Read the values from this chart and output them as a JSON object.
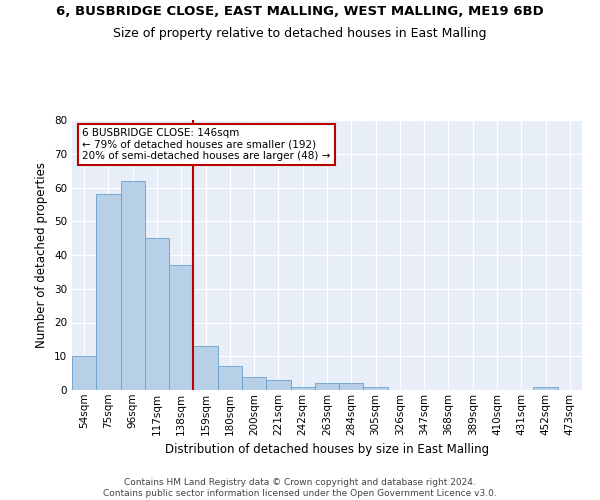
{
  "title_line1": "6, BUSBRIDGE CLOSE, EAST MALLING, WEST MALLING, ME19 6BD",
  "title_line2": "Size of property relative to detached houses in East Malling",
  "xlabel": "Distribution of detached houses by size in East Malling",
  "ylabel": "Number of detached properties",
  "categories": [
    "54sqm",
    "75sqm",
    "96sqm",
    "117sqm",
    "138sqm",
    "159sqm",
    "180sqm",
    "200sqm",
    "221sqm",
    "242sqm",
    "263sqm",
    "284sqm",
    "305sqm",
    "326sqm",
    "347sqm",
    "368sqm",
    "389sqm",
    "410sqm",
    "431sqm",
    "452sqm",
    "473sqm"
  ],
  "values": [
    10,
    58,
    62,
    45,
    37,
    13,
    7,
    4,
    3,
    1,
    2,
    2,
    1,
    0,
    0,
    0,
    0,
    0,
    0,
    1,
    0
  ],
  "bar_color": "#b8cfe8",
  "bar_edge_color": "#6aa0cc",
  "reference_line_index": 4,
  "reference_line_color": "#bb0000",
  "annotation_line1": "6 BUSBRIDGE CLOSE: 146sqm",
  "annotation_line2": "← 79% of detached houses are smaller (192)",
  "annotation_line3": "20% of semi-detached houses are larger (48) →",
  "annotation_box_edge_color": "#bb0000",
  "ylim": [
    0,
    80
  ],
  "yticks": [
    0,
    10,
    20,
    30,
    40,
    50,
    60,
    70,
    80
  ],
  "footer_line1": "Contains HM Land Registry data © Crown copyright and database right 2024.",
  "footer_line2": "Contains public sector information licensed under the Open Government Licence v3.0.",
  "plot_bg_color": "#e8eef8",
  "fig_bg_color": "#ffffff",
  "grid_color": "#ffffff",
  "title1_fontsize": 9.5,
  "title2_fontsize": 9.0,
  "ylabel_fontsize": 8.5,
  "xlabel_fontsize": 8.5,
  "tick_fontsize": 7.5,
  "annotation_fontsize": 7.5,
  "footer_fontsize": 6.5
}
